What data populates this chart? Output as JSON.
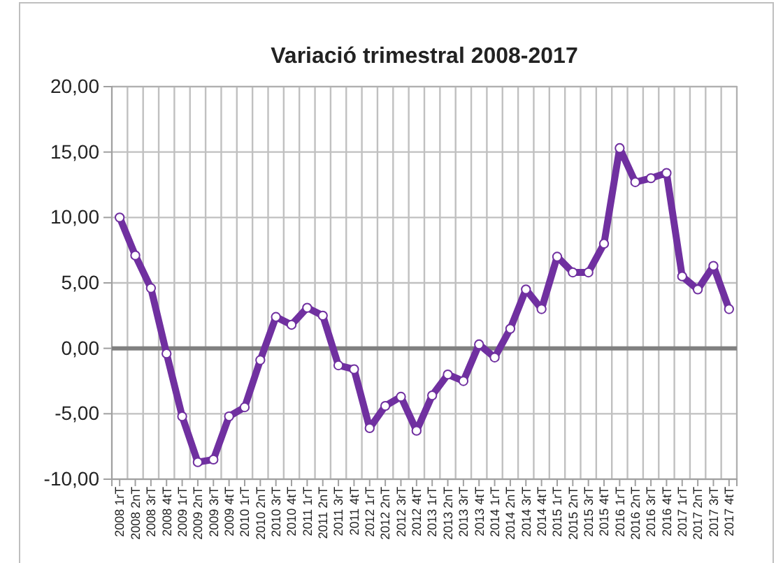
{
  "chart_data": {
    "type": "line",
    "title": "Variació trimestral 2008-2017",
    "categories": [
      "2008 1rT",
      "2008 2nT",
      "2008 3rT",
      "2008 4tT",
      "2009 1rT",
      "2009 2nT",
      "2009 3rT",
      "2009 4tT",
      "2010 1rT",
      "2010 2nT",
      "2010 3rT",
      "2010 4tT",
      "2011 1rT",
      "2011 2nT",
      "2011 3rT",
      "2011 4tT",
      "2012 1rT",
      "2012 2nT",
      "2012 3rT",
      "2012 4tT",
      "2013 1rT",
      "2013 2nT",
      "2013 3rT",
      "2013 4tT",
      "2014 1rT",
      "2014 2nT",
      "2014 3rT",
      "2014 4tT",
      "2015 1rT",
      "2015 2nT",
      "2015 3rT",
      "2015 4tT",
      "2016 1rT",
      "2016 2nT",
      "2016 3rT",
      "2016 4tT",
      "2017 1rT",
      "2017 2nT",
      "2017 3rT",
      "2017 4tT"
    ],
    "series": [
      {
        "color": "#7030a0",
        "values": [
          10.0,
          7.1,
          4.6,
          -0.4,
          -5.2,
          -8.7,
          -8.5,
          -5.2,
          -4.5,
          -0.9,
          2.4,
          1.8,
          3.1,
          2.5,
          -1.3,
          -1.6,
          -6.1,
          -4.4,
          -3.7,
          -6.3,
          -3.6,
          -2.0,
          -2.5,
          0.3,
          -0.7,
          1.5,
          4.5,
          3.0,
          7.0,
          5.8,
          5.8,
          8.0,
          15.3,
          12.7,
          13.0,
          13.4,
          5.5,
          4.5,
          6.3,
          3.0
        ]
      }
    ],
    "ylim": [
      -10,
      20
    ],
    "yticks": [
      {
        "value": -10,
        "label": "-10,00"
      },
      {
        "value": -5,
        "label": "-5,00"
      },
      {
        "value": 0,
        "label": "0,00"
      },
      {
        "value": 5,
        "label": "5,00"
      },
      {
        "value": 10,
        "label": "10,00"
      },
      {
        "value": 15,
        "label": "15,00"
      },
      {
        "value": 20,
        "label": "20,00"
      }
    ],
    "ref_lines": [
      {
        "axis": "y",
        "value": 0,
        "color": "#808080"
      }
    ],
    "grid": true,
    "marker": "circle",
    "line_style": "solid"
  }
}
